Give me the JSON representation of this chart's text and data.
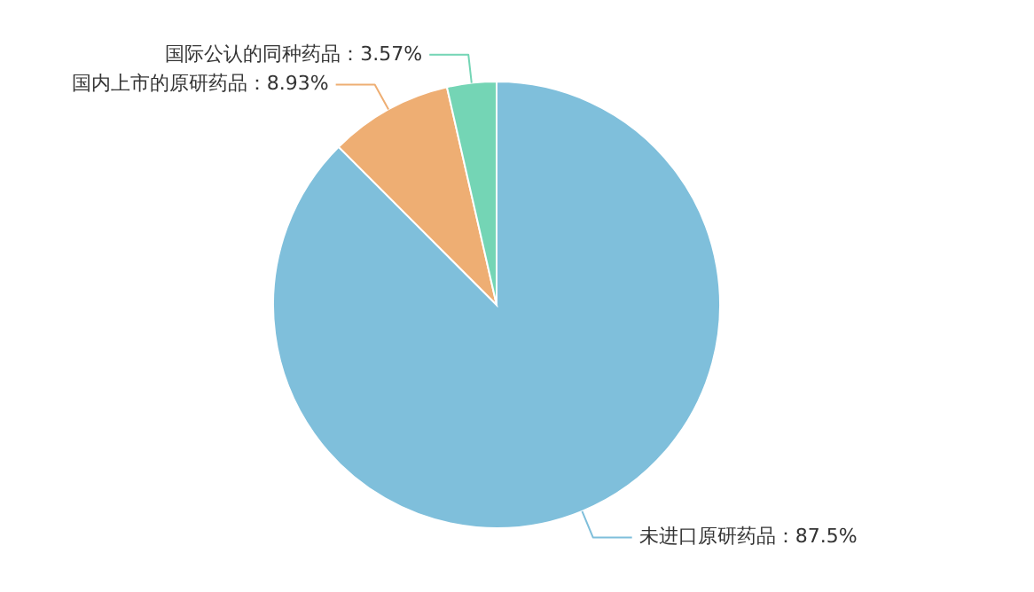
{
  "chart_data": {
    "type": "pie",
    "categories": [
      "未进口原研药品",
      "国内上市的原研药品",
      "国际公认的同种药品"
    ],
    "values": [
      87.5,
      8.93,
      3.57
    ],
    "colors": [
      "#7fbfdb",
      "#eeae73",
      "#74d5b5"
    ],
    "value_labels": [
      "87.5%",
      "8.93%",
      "3.57%"
    ]
  }
}
